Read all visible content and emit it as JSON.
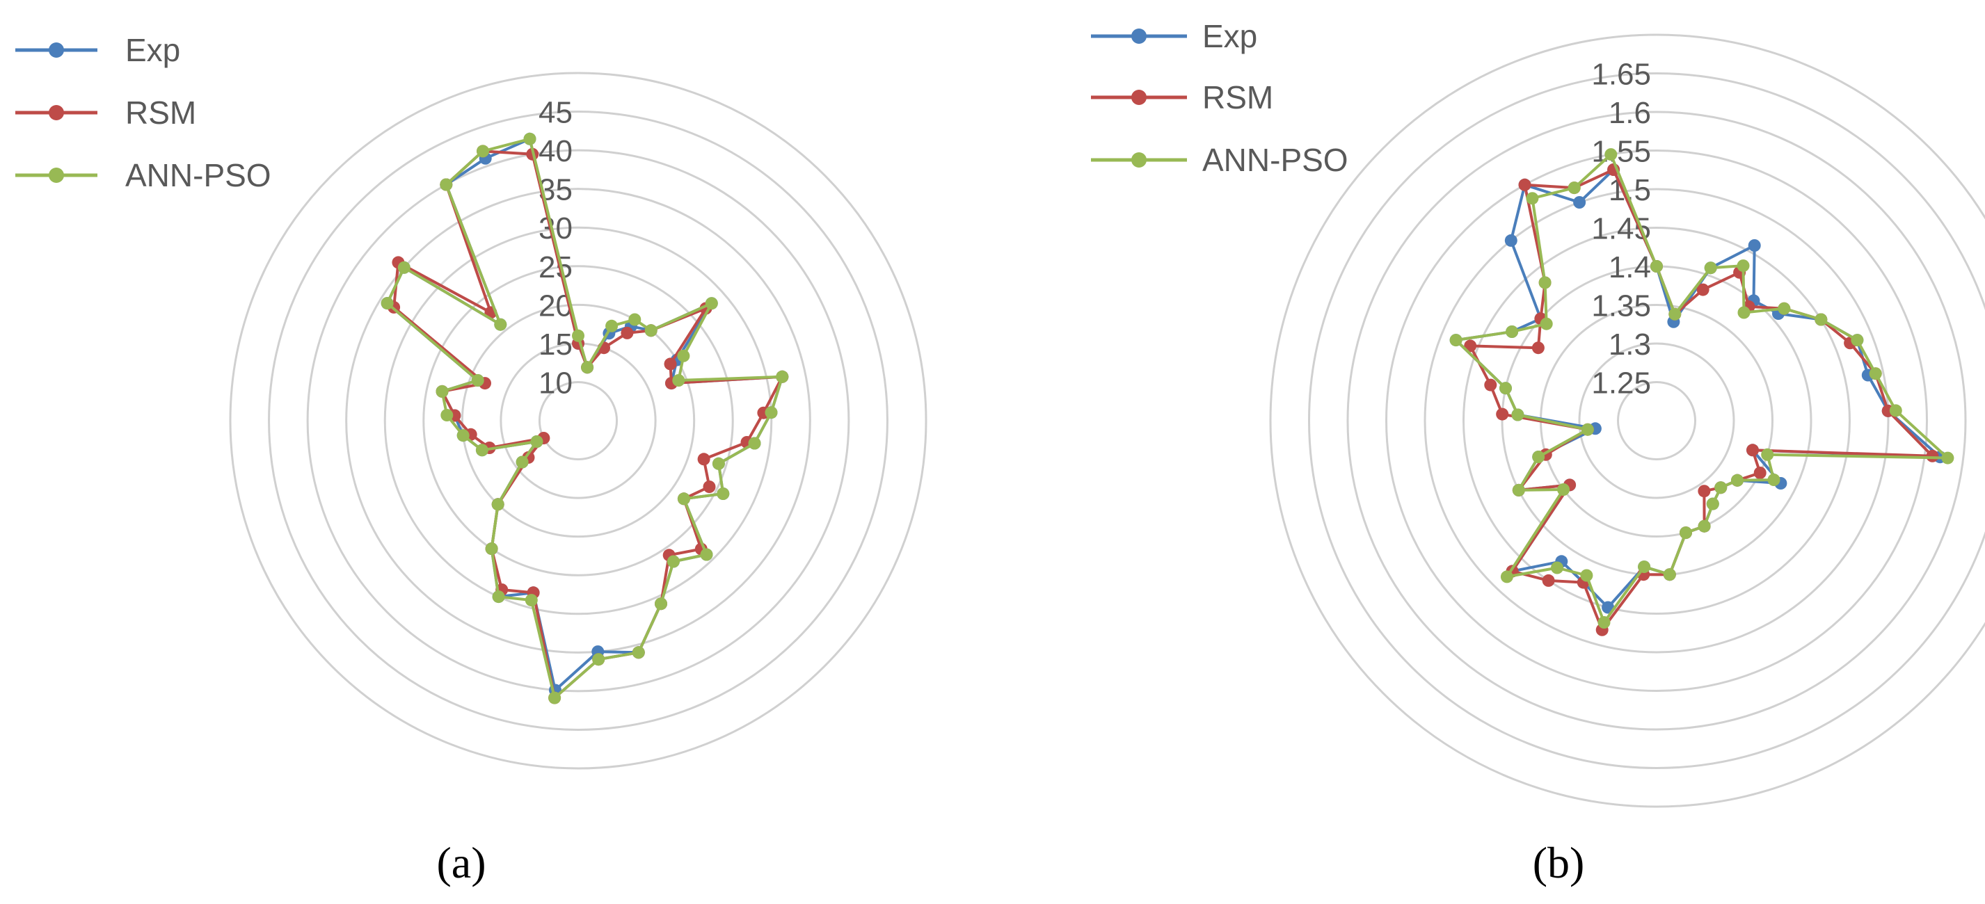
{
  "chart_data": [
    {
      "type": "radar",
      "panel_label": "(a)",
      "ticks": [
        "10",
        "15",
        "20",
        "25",
        "30",
        "35",
        "40",
        "45"
      ],
      "rmin": 5,
      "rmax": 50,
      "legend": {
        "placement": "top-left",
        "entries": [
          "Exp",
          "RSM",
          "ANN-PSO"
        ]
      },
      "grid": true,
      "series": [
        {
          "name": "Exp",
          "color": "#4a7ebb",
          "values": [
            15,
            12,
            17,
            19,
            20,
            28,
            20,
            18,
            32,
            30,
            28,
            24,
            26,
            22,
            29,
            27,
            31,
            36,
            35,
            40,
            28,
            30,
            25,
            20,
            14,
            11,
            18,
            20,
            21,
            23,
            19,
            34,
            35,
            21,
            40,
            41,
            42
          ]
        },
        {
          "name": "RSM",
          "color": "#be4b48",
          "values": [
            15,
            12,
            15,
            18,
            20,
            27,
            19,
            18,
            32,
            29,
            27,
            22,
            24,
            22,
            28,
            26,
            31,
            36,
            36,
            41,
            28,
            29,
            25,
            20,
            13,
            10,
            17,
            19,
            21,
            23,
            18,
            33,
            36,
            23,
            40,
            42,
            40
          ]
        },
        {
          "name": "ANN-PSO",
          "color": "#98b954",
          "values": [
            16,
            12,
            18,
            20,
            20,
            28,
            21,
            19,
            32,
            30,
            28,
            24,
            26,
            22,
            29,
            27,
            31,
            36,
            36,
            41,
            29,
            30,
            25,
            20,
            14,
            11,
            18,
            20,
            22,
            23,
            19,
            34,
            35,
            21,
            40,
            42,
            42
          ]
        }
      ]
    },
    {
      "type": "radar",
      "panel_label": "(b)",
      "ticks": [
        "1.25",
        "1.3",
        "1.35",
        "1.4",
        "1.45",
        "1.5",
        "1.55",
        "1.6",
        "1.65"
      ],
      "rmin": 1.2,
      "rmax": 1.7,
      "legend": {
        "placement": "top-left",
        "entries": [
          "Exp",
          "RSM",
          "ANN-PSO"
        ]
      },
      "grid": true,
      "series": [
        {
          "name": "Exp",
          "color": "#4a7ebb",
          "values": [
            1.4,
            1.33,
            1.41,
            1.46,
            1.4,
            1.41,
            1.45,
            1.48,
            1.48,
            1.5,
            1.57,
            1.33,
            1.38,
            1.33,
            1.32,
            1.33,
            1.35,
            1.35,
            1.4,
            1.39,
            1.45,
            1.43,
            1.42,
            1.47,
            1.34,
            1.4,
            1.36,
            1.28,
            1.38,
            1.4,
            1.48,
            1.42,
            1.4,
            1.5,
            1.55,
            1.5,
            1.53
          ]
        },
        {
          "name": "RSM",
          "color": "#be4b48",
          "values": [
            1.4,
            1.34,
            1.38,
            1.42,
            1.39,
            1.42,
            1.45,
            1.47,
            1.49,
            1.5,
            1.56,
            1.33,
            1.35,
            1.33,
            1.32,
            1.31,
            1.35,
            1.35,
            1.4,
            1.4,
            1.48,
            1.43,
            1.45,
            1.47,
            1.34,
            1.4,
            1.35,
            1.29,
            1.4,
            1.42,
            1.46,
            1.38,
            1.4,
            1.43,
            1.55,
            1.52,
            1.53
          ]
        },
        {
          "name": "ANN-PSO",
          "color": "#98b954",
          "values": [
            1.4,
            1.34,
            1.41,
            1.43,
            1.38,
            1.42,
            1.45,
            1.48,
            1.49,
            1.51,
            1.58,
            1.35,
            1.37,
            1.33,
            1.32,
            1.33,
            1.35,
            1.35,
            1.4,
            1.39,
            1.47,
            1.42,
            1.43,
            1.48,
            1.35,
            1.4,
            1.36,
            1.29,
            1.38,
            1.4,
            1.48,
            1.42,
            1.39,
            1.43,
            1.53,
            1.52,
            1.55
          ]
        }
      ]
    }
  ]
}
